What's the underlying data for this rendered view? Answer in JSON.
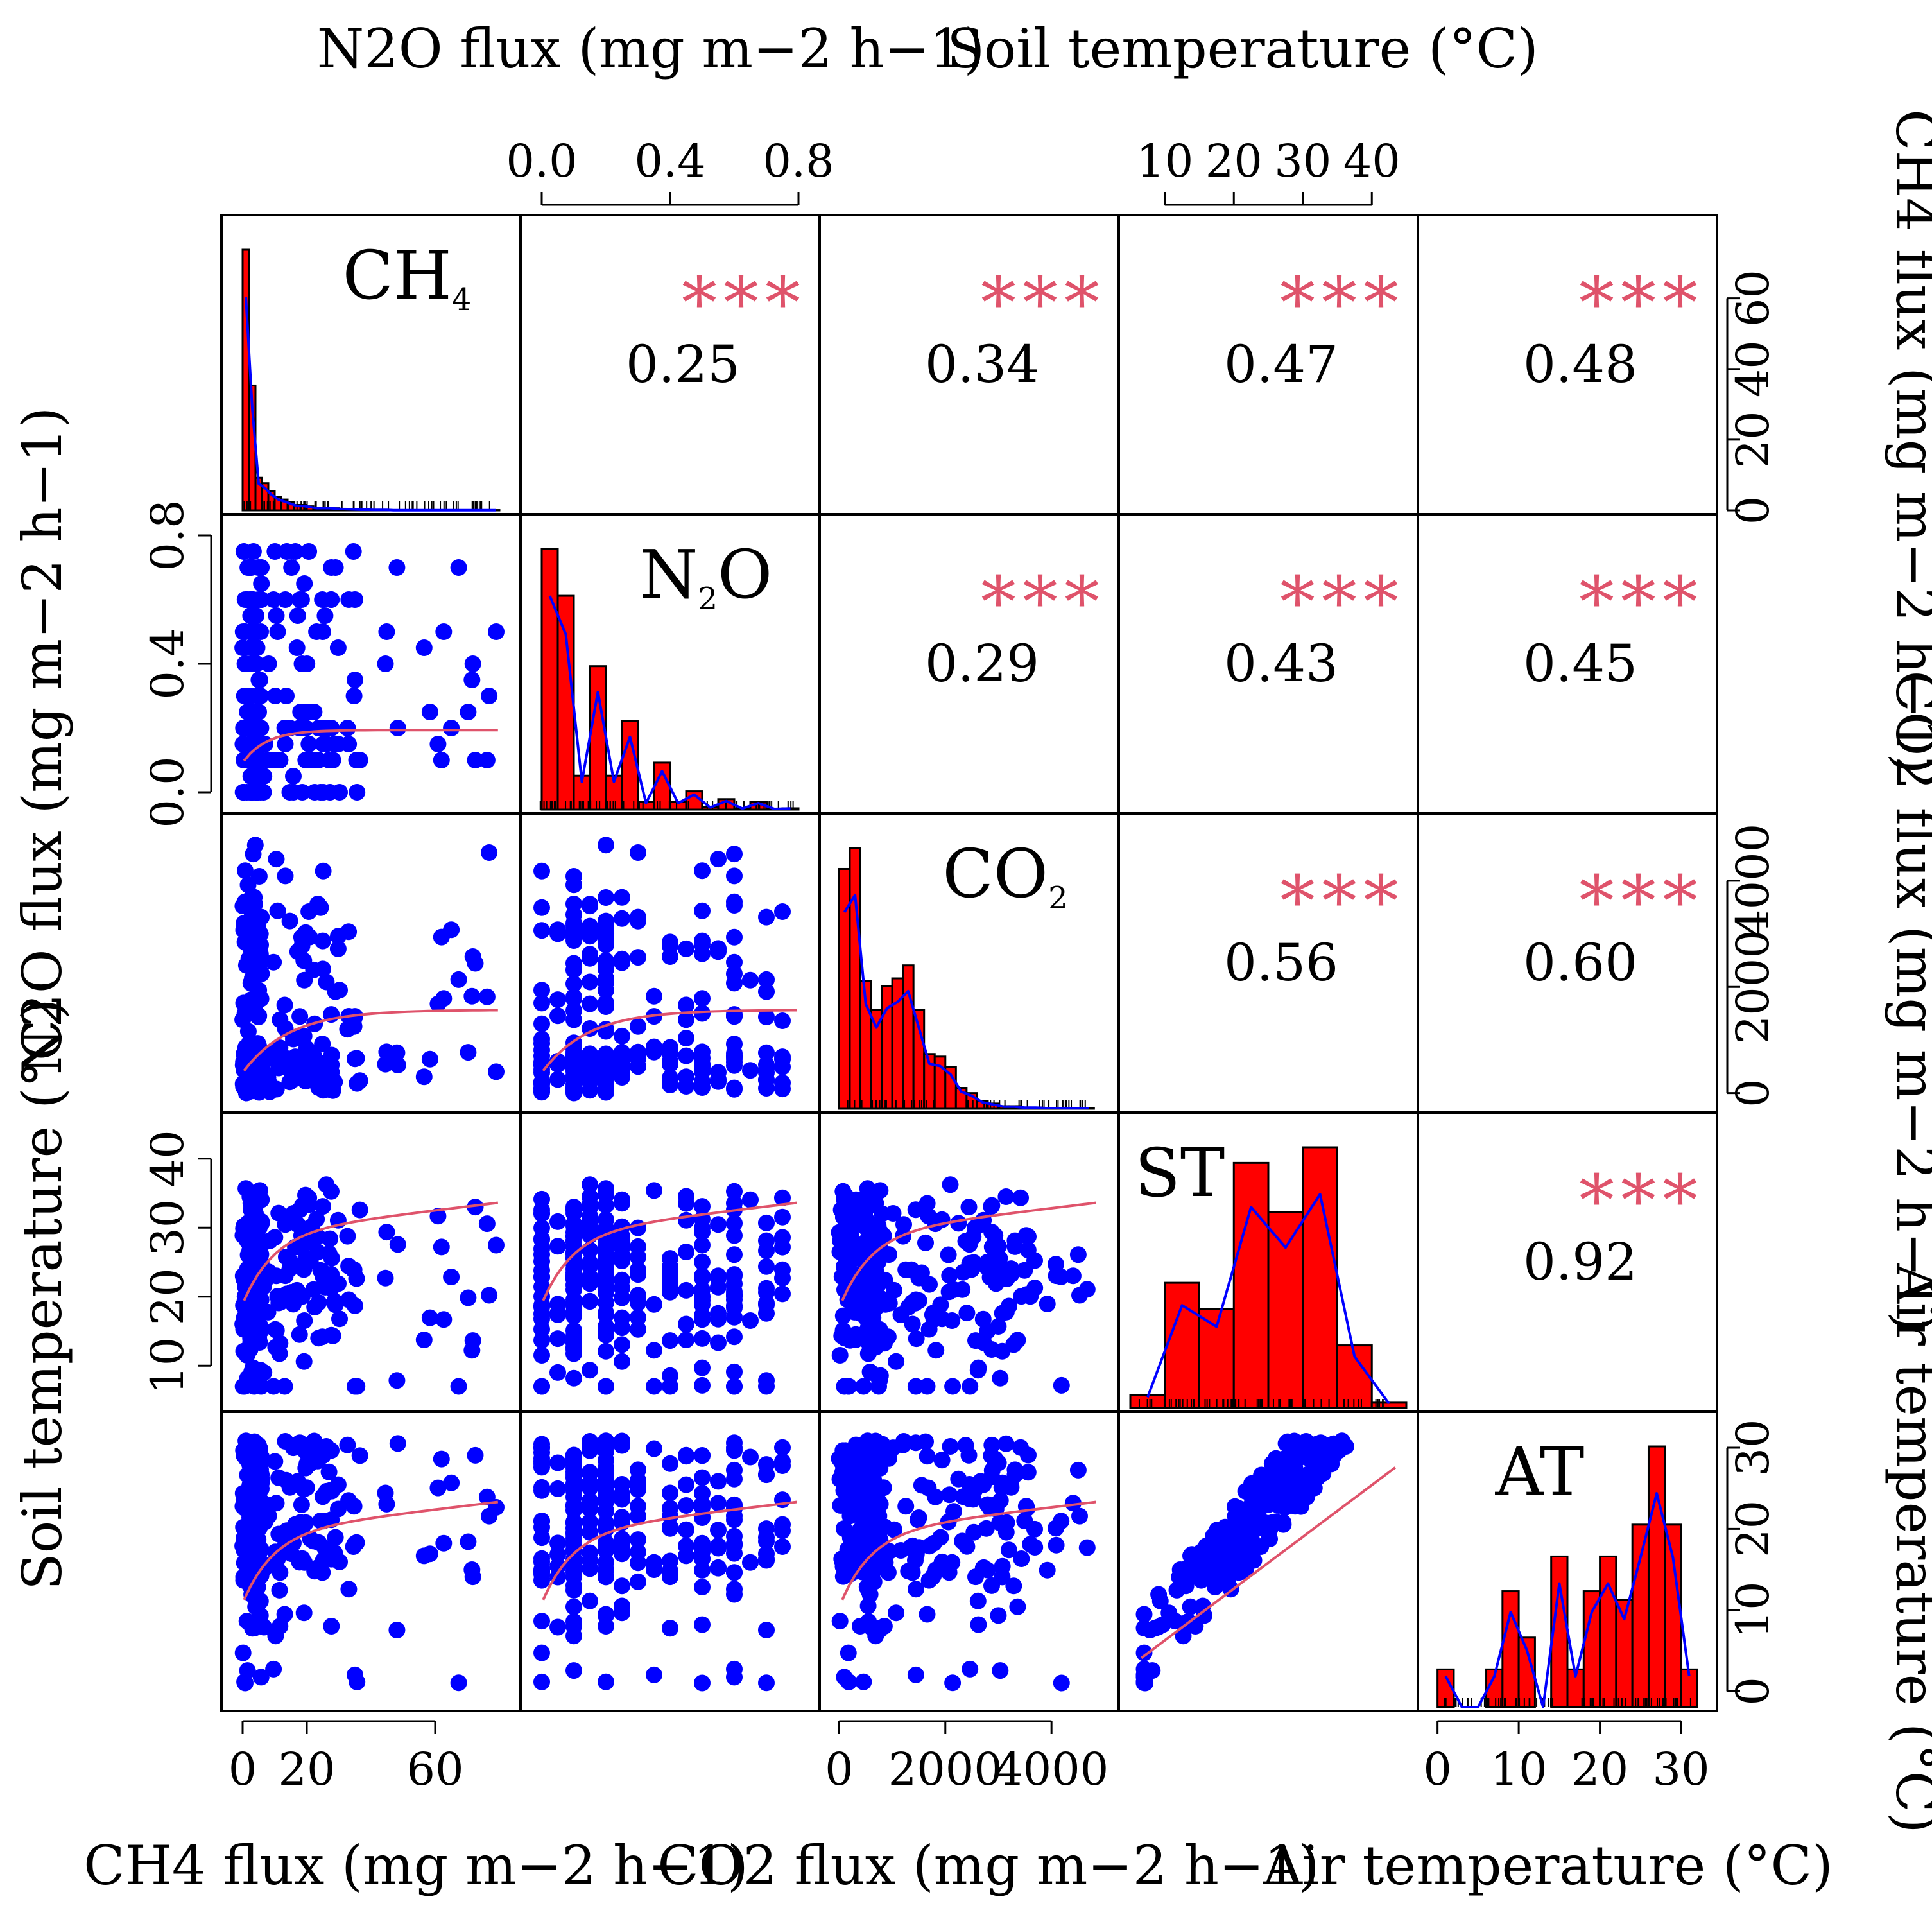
{
  "chart_data": {
    "type": "scatter-matrix",
    "variables": [
      {
        "key": "CH4",
        "diag_label": "CH4",
        "axis_label": "CH4 flux (mg m−2 h−1)",
        "range": [
          -3,
          83
        ],
        "ticks": [
          0,
          20,
          60
        ],
        "density_ticks": [
          0,
          20,
          40,
          60
        ]
      },
      {
        "key": "N2O",
        "diag_label": "N2O",
        "axis_label": "N2O flux (mg m−2 h−1)",
        "range": [
          -0.03,
          0.83
        ],
        "ticks": [
          0.0,
          0.4,
          0.8
        ]
      },
      {
        "key": "CO2",
        "diag_label": "CO2",
        "axis_label": "CO2 flux (mg m−2 h−1)",
        "range": [
          -150,
          5050
        ],
        "ticks": [
          0,
          2000,
          4000
        ]
      },
      {
        "key": "ST",
        "diag_label": "ST",
        "axis_label": "Soil temperature (°C)",
        "range": [
          5,
          45
        ],
        "ticks": [
          10,
          20,
          30,
          40
        ]
      },
      {
        "key": "AT",
        "diag_label": "AT",
        "axis_label": "Air temperature (°C)",
        "range": [
          -1,
          33
        ],
        "ticks": [
          0,
          10,
          20,
          30
        ]
      }
    ],
    "axis_labels": {
      "top_left": "N2O flux (mg m−2 h−1)",
      "top_right": "Soil temperature (°C)",
      "bottom_left": "CH4 flux (mg m−2 h−1)",
      "bottom_middle": "CO2 flux (mg m−2 h−1)",
      "bottom_right": "Air temperature (°C)",
      "left_upper": "N2O flux (mg m−2 h−1)",
      "left_lower": "Soil temperature (°C)",
      "right_upper": "CH4 flux (mg m−2 h−1)",
      "right_middle": "CO2 flux (mg m−2 h−1)",
      "right_lower": "Air temperature (°C)"
    },
    "correlations": [
      {
        "row": 0,
        "col": 1,
        "r": "0.25",
        "sig": "***"
      },
      {
        "row": 0,
        "col": 2,
        "r": "0.34",
        "sig": "***"
      },
      {
        "row": 0,
        "col": 3,
        "r": "0.47",
        "sig": "***"
      },
      {
        "row": 0,
        "col": 4,
        "r": "0.48",
        "sig": "***"
      },
      {
        "row": 1,
        "col": 2,
        "r": "0.29",
        "sig": "***"
      },
      {
        "row": 1,
        "col": 3,
        "r": "0.43",
        "sig": "***"
      },
      {
        "row": 1,
        "col": 4,
        "r": "0.45",
        "sig": "***"
      },
      {
        "row": 2,
        "col": 3,
        "r": "0.56",
        "sig": "***"
      },
      {
        "row": 2,
        "col": 4,
        "r": "0.60",
        "sig": "***"
      },
      {
        "row": 3,
        "col": 4,
        "r": "0.92",
        "sig": "***"
      }
    ],
    "histograms": {
      "CH4": {
        "bin_width": 2,
        "start": 0,
        "counts": [
          96,
          46,
          12,
          10,
          7,
          5,
          4,
          3,
          2,
          2,
          1.5,
          1,
          1,
          1,
          0.8,
          0.6,
          0.5,
          0.4,
          0.3,
          0.3,
          0.2,
          0.2,
          0.2,
          0.1,
          0.1,
          0.1,
          0.1,
          0.1,
          0.1,
          0.1,
          0.1,
          0.1,
          0.1,
          0.1,
          0.1,
          0.1,
          0.1,
          0.1,
          0.1,
          0.1
        ]
      },
      "N2O": {
        "bin_width": 0.05,
        "start": 0,
        "counts": [
          100,
          82,
          13,
          55,
          13,
          34,
          3,
          18,
          3,
          7,
          1,
          4,
          0.5,
          3,
          0.3,
          0.5
        ]
      },
      "CO2": {
        "bin_width": 200,
        "start": 0,
        "counts": [
          92,
          100,
          49,
          38,
          47,
          50,
          55,
          38,
          21,
          20,
          16,
          8,
          6,
          3,
          2,
          1,
          1,
          0.5,
          0.5,
          0.3,
          0.3,
          0.2,
          0.2,
          0.3
        ]
      },
      "ST": {
        "bin_width": 5,
        "start": 5,
        "counts": [
          5,
          48,
          38,
          94,
          75,
          100,
          24,
          2
        ]
      },
      "AT": {
        "bin_width": 2,
        "start": 0,
        "counts": [
          13,
          0,
          0,
          13,
          40,
          24,
          0,
          52,
          13,
          40,
          52,
          37,
          63,
          90,
          63,
          13
        ]
      }
    }
  }
}
